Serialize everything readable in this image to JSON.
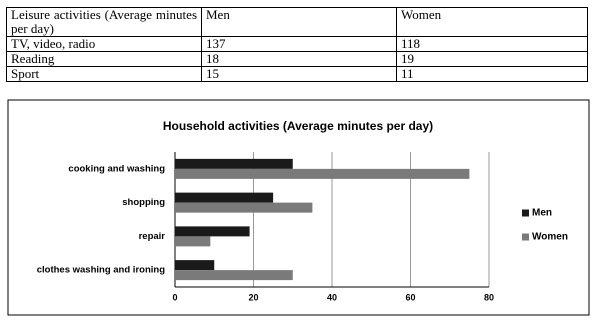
{
  "table": {
    "header": [
      "Leisure activities (Average minutes per day)",
      "Men",
      "Women"
    ],
    "rows": [
      [
        "TV, video, radio",
        137,
        118
      ],
      [
        "Reading",
        18,
        19
      ],
      [
        "Sport",
        15,
        11
      ]
    ]
  },
  "chart_data": {
    "type": "barh",
    "title": "Household activities (Average minutes per day)",
    "categories": [
      "cooking and washing",
      "shopping",
      "repair",
      "clothes washing and ironing"
    ],
    "series": [
      {
        "name": "Men",
        "color": "#1a1a1a",
        "values": [
          30,
          25,
          19,
          10
        ]
      },
      {
        "name": "Women",
        "color": "#7a7a7a",
        "values": [
          75,
          35,
          9,
          30
        ]
      }
    ],
    "xlim": [
      0,
      80
    ],
    "xticks": [
      0,
      20,
      40,
      60,
      80
    ],
    "grid": true,
    "legend": "right"
  }
}
